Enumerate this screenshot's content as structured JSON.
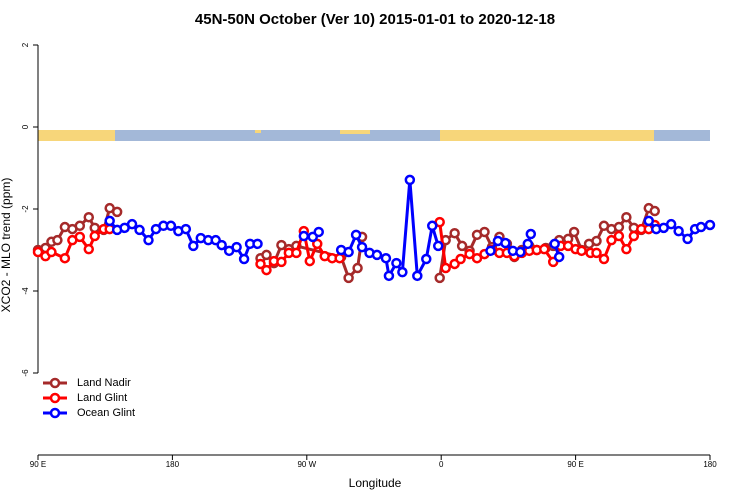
{
  "chart_data": {
    "type": "line",
    "title": "45N-50N October (Ver 10)   2015-01-01 to 2020-12-18",
    "x_label": "Longitude",
    "y_label": "XCO2 - MLO trend (ppm)",
    "xlim": [
      90,
      540
    ],
    "xticks": [
      {
        "value": 90,
        "label": "90 E"
      },
      {
        "value": 180,
        "label": "180"
      },
      {
        "value": 270,
        "label": "90 W"
      },
      {
        "value": 360,
        "label": "0"
      },
      {
        "value": 450,
        "label": "90 E"
      },
      {
        "value": 540,
        "label": "180"
      }
    ],
    "ylim": [
      -8,
      2.2
    ],
    "yticks": [
      2,
      0,
      -2,
      -4,
      -6
    ],
    "legend": "bottomleft",
    "series": [
      {
        "name": "Land Nadir",
        "color": "#a52a2a",
        "x": [
          90,
          95,
          99,
          103,
          108,
          113,
          118,
          124,
          128,
          134,
          138,
          143,
          null,
          239,
          243,
          248,
          253,
          258,
          263,
          293,
          298,
          304,
          307,
          null,
          359,
          363,
          369,
          374,
          379,
          384,
          389,
          394,
          399,
          404,
          409,
          414,
          419,
          424,
          430,
          435,
          439,
          445,
          449,
          454,
          459,
          464,
          469,
          474,
          479,
          484,
          489,
          494,
          499,
          503
        ],
        "values": [
          -3.0,
          -2.95,
          -2.8,
          -2.76,
          -2.44,
          -2.49,
          -2.41,
          -2.2,
          -2.46,
          -2.51,
          -1.98,
          -2.07,
          null,
          -3.2,
          -3.12,
          -3.32,
          -2.88,
          -2.98,
          -2.9,
          -3.17,
          -3.68,
          -3.44,
          -2.68,
          null,
          -3.68,
          -2.76,
          -2.59,
          -2.9,
          -3.02,
          -2.63,
          -2.56,
          -2.93,
          -2.68,
          -2.85,
          -3.17,
          -3.0,
          -2.9,
          -3.0,
          -2.95,
          -2.9,
          -2.76,
          -2.73,
          -2.56,
          -3.0,
          -2.85,
          -2.78,
          -2.41,
          -2.49,
          -2.44,
          -2.2,
          -2.46,
          -2.51,
          -1.98,
          -2.05
        ]
      },
      {
        "name": "Land Glint",
        "color": "#ff0000",
        "x": [
          90,
          95,
          99,
          108,
          113,
          118,
          124,
          128,
          134,
          138,
          null,
          239,
          243,
          248,
          253,
          258,
          263,
          268,
          272,
          277,
          282,
          287,
          292,
          null,
          359,
          363,
          369,
          373,
          379,
          384,
          389,
          394,
          399,
          404,
          409,
          414,
          419,
          424,
          429,
          435,
          440,
          445,
          450,
          454,
          460,
          464,
          469,
          474,
          479,
          484,
          489,
          494,
          499,
          503
        ],
        "values": [
          -3.05,
          -3.15,
          -3.05,
          -3.2,
          -2.76,
          -2.68,
          -2.98,
          -2.66,
          -2.49,
          -2.49,
          null,
          -3.34,
          -3.49,
          -3.27,
          -3.29,
          -3.07,
          -3.07,
          -2.54,
          -3.27,
          -2.85,
          -3.15,
          -3.2,
          -3.2,
          null,
          -2.32,
          -3.44,
          -3.34,
          -3.22,
          -3.1,
          -3.2,
          -3.1,
          -3.0,
          -3.07,
          -3.07,
          -3.15,
          -3.07,
          -3.02,
          -3.0,
          -2.98,
          -3.29,
          -2.9,
          -2.9,
          -2.98,
          -3.02,
          -3.07,
          -3.07,
          -3.22,
          -2.76,
          -2.66,
          -2.98,
          -2.66,
          -2.49,
          -2.49,
          -2.39
        ]
      },
      {
        "name": "Ocean Glint",
        "color": "#0000ff",
        "x": [
          138,
          143,
          148,
          153,
          158,
          164,
          169,
          174,
          179,
          184,
          189,
          194,
          199,
          204,
          209,
          213,
          218,
          223,
          228,
          232,
          237,
          null,
          268,
          274,
          278,
          null,
          293,
          298,
          303,
          307,
          312,
          317,
          323,
          325,
          330,
          334,
          339,
          344,
          350,
          354,
          358,
          null,
          393,
          398,
          403,
          408,
          413,
          418,
          420,
          null,
          436,
          439,
          null,
          499,
          504,
          509,
          514,
          519,
          525,
          530,
          534,
          540
        ],
        "values": [
          -2.29,
          -2.51,
          -2.46,
          -2.37,
          -2.51,
          -2.76,
          -2.49,
          -2.41,
          -2.41,
          -2.54,
          -2.49,
          -2.9,
          -2.71,
          -2.76,
          -2.76,
          -2.88,
          -3.02,
          -2.93,
          -3.22,
          -2.85,
          -2.85,
          null,
          -2.66,
          -2.68,
          -2.56,
          null,
          -3.0,
          -3.05,
          -2.63,
          -2.93,
          -3.07,
          -3.12,
          -3.2,
          -3.63,
          -3.32,
          -3.54,
          -1.29,
          -3.63,
          -3.22,
          -2.41,
          -2.9,
          null,
          -3.02,
          -2.78,
          -2.83,
          -3.02,
          -3.05,
          -2.85,
          -2.61,
          null,
          -2.85,
          -3.17,
          null,
          -2.29,
          -2.49,
          -2.46,
          -2.37,
          -2.54,
          -2.73,
          -2.49,
          -2.44,
          -2.39
        ]
      }
    ]
  }
}
